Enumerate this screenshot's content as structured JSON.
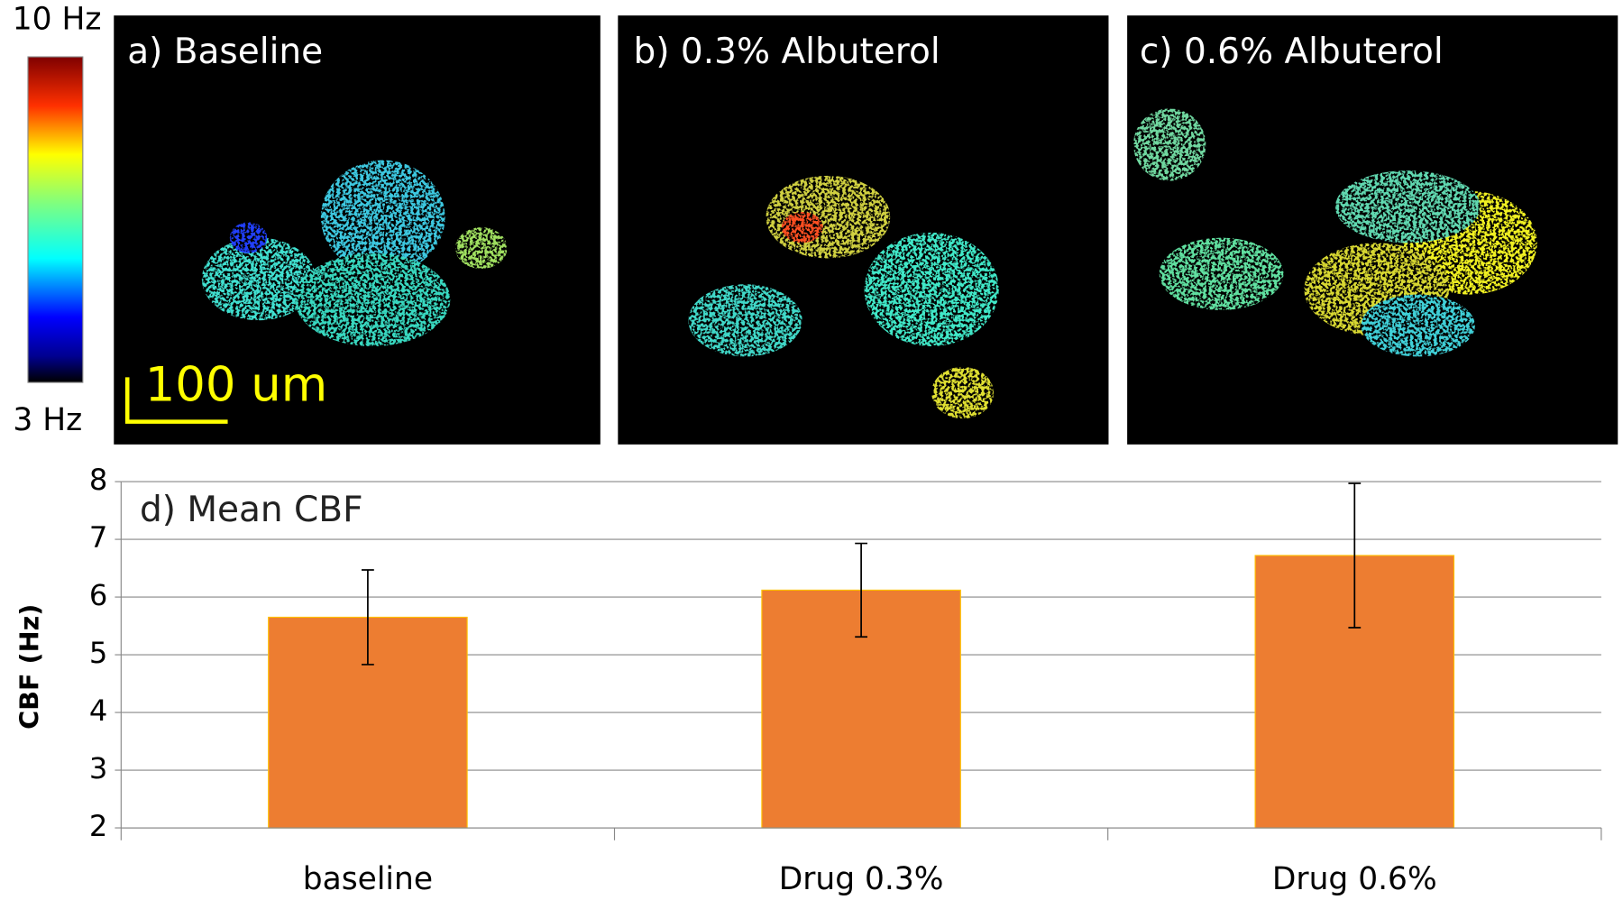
{
  "panels": [
    {
      "label": "a) Baseline"
    },
    {
      "label": "b) 0.3% Albuterol"
    },
    {
      "label": "c) 0.6% Albuterol"
    }
  ],
  "colorbar": {
    "max_label": "10 Hz",
    "min_label": "3 Hz"
  },
  "scale_bar": {
    "label": "100 um"
  },
  "chart_data": {
    "type": "bar",
    "title": "d) Mean CBF",
    "y_label": "CBF (Hz)",
    "categories": [
      "baseline",
      "Drug 0.3%",
      "Drug 0.6%"
    ],
    "values": [
      5.65,
      6.12,
      6.72
    ],
    "errors": [
      0.82,
      0.81,
      1.25
    ],
    "color": "#ed7d31",
    "ylim": [
      2,
      8
    ],
    "yticks": [
      2,
      3,
      4,
      5,
      6,
      7,
      8
    ],
    "grid": true
  }
}
